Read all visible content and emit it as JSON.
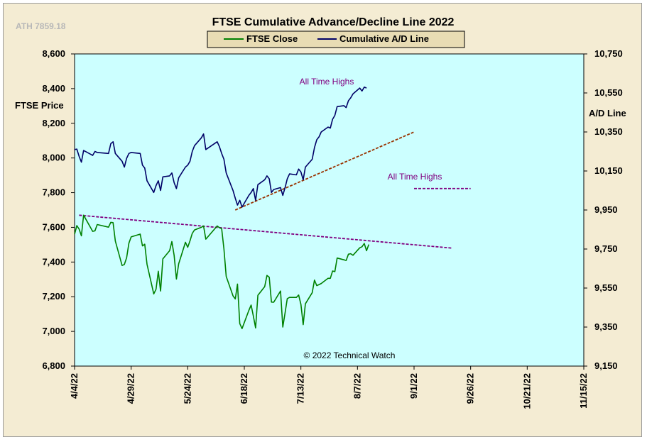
{
  "title": "FTSE Cumulative  Advance/Decline  Line 2022",
  "ath_label": "ATH 7859.18",
  "copyright": "© 2022 Technical Watch",
  "colors": {
    "background": "#f4ecd3",
    "plot_area": "#ccffff",
    "ftse": "#008000",
    "ad": "#000066",
    "trend_ad": "#993300",
    "trend_ftse": "#800080",
    "annotation": "#800080"
  },
  "chart_data": {
    "type": "line",
    "title": "FTSE Cumulative  Advance/Decline  Line 2022",
    "grid": false,
    "legend_position": "top-center",
    "x_ticks": [
      "4/4/22",
      "4/29/22",
      "5/24/22",
      "6/18/22",
      "7/13/22",
      "8/7/22",
      "9/1/22",
      "9/26/22",
      "10/21/22",
      "11/15/22"
    ],
    "left_axis": {
      "label": "FTSE Price",
      "range": [
        6800,
        8600
      ],
      "ticks": [
        "6,800",
        "7,000",
        "7,200",
        "7,400",
        "7,600",
        "7,800",
        "8,000",
        "8,200",
        "8,400",
        "8,600"
      ]
    },
    "right_axis": {
      "label": "A/D Line",
      "range": [
        9150,
        10750
      ],
      "ticks": [
        "9,150",
        "9,350",
        "9,550",
        "9,750",
        "9,950",
        "10,150",
        "10,350",
        "10,550",
        "10,750"
      ]
    },
    "series": [
      {
        "name": "FTSE Close",
        "axis": "left",
        "color": "#008000",
        "points": [
          [
            "4/4/22",
            7560
          ],
          [
            "4/5/22",
            7610
          ],
          [
            "4/6/22",
            7590
          ],
          [
            "4/7/22",
            7551
          ],
          [
            "4/8/22",
            7670
          ],
          [
            "4/12/22",
            7577
          ],
          [
            "4/13/22",
            7580
          ],
          [
            "4/14/22",
            7616
          ],
          [
            "4/19/22",
            7601
          ],
          [
            "4/20/22",
            7629
          ],
          [
            "4/21/22",
            7627
          ],
          [
            "4/22/22",
            7521
          ],
          [
            "4/25/22",
            7380
          ],
          [
            "4/26/22",
            7386
          ],
          [
            "4/27/22",
            7425
          ],
          [
            "4/28/22",
            7509
          ],
          [
            "4/29/22",
            7545
          ],
          [
            "5/3/22",
            7561
          ],
          [
            "5/4/22",
            7493
          ],
          [
            "5/5/22",
            7503
          ],
          [
            "5/6/22",
            7387
          ],
          [
            "5/9/22",
            7216
          ],
          [
            "5/10/22",
            7243
          ],
          [
            "5/11/22",
            7347
          ],
          [
            "5/12/22",
            7233
          ],
          [
            "5/13/22",
            7418
          ],
          [
            "5/16/22",
            7465
          ],
          [
            "5/17/22",
            7518
          ],
          [
            "5/18/22",
            7438
          ],
          [
            "5/19/22",
            7302
          ],
          [
            "5/20/22",
            7390
          ],
          [
            "5/23/22",
            7514
          ],
          [
            "5/24/22",
            7485
          ],
          [
            "5/25/22",
            7522
          ],
          [
            "5/26/22",
            7565
          ],
          [
            "5/27/22",
            7585
          ],
          [
            "5/30/22",
            7600
          ],
          [
            "5/31/22",
            7608
          ],
          [
            "6/1/22",
            7532
          ],
          [
            "6/6/22",
            7608
          ],
          [
            "6/7/22",
            7598
          ],
          [
            "6/8/22",
            7593
          ],
          [
            "6/9/22",
            7476
          ],
          [
            "6/10/22",
            7317
          ],
          [
            "6/13/22",
            7205
          ],
          [
            "6/14/22",
            7187
          ],
          [
            "6/15/22",
            7273
          ],
          [
            "6/16/22",
            7045
          ],
          [
            "6/17/22",
            7016
          ],
          [
            "6/20/22",
            7121
          ],
          [
            "6/21/22",
            7152
          ],
          [
            "6/22/22",
            7089
          ],
          [
            "6/23/22",
            7020
          ],
          [
            "6/24/22",
            7208
          ],
          [
            "6/27/22",
            7258
          ],
          [
            "6/28/22",
            7323
          ],
          [
            "6/29/22",
            7312
          ],
          [
            "6/30/22",
            7169
          ],
          [
            "7/1/22",
            7168
          ],
          [
            "7/4/22",
            7233
          ],
          [
            "7/5/22",
            7025
          ],
          [
            "7/6/22",
            7107
          ],
          [
            "7/7/22",
            7189
          ],
          [
            "7/8/22",
            7196
          ],
          [
            "7/11/22",
            7196
          ],
          [
            "7/12/22",
            7210
          ],
          [
            "7/13/22",
            7156
          ],
          [
            "7/14/22",
            7039
          ],
          [
            "7/15/22",
            7159
          ],
          [
            "7/18/22",
            7223
          ],
          [
            "7/19/22",
            7296
          ],
          [
            "7/20/22",
            7264
          ],
          [
            "7/21/22",
            7270
          ],
          [
            "7/22/22",
            7276
          ],
          [
            "7/25/22",
            7306
          ],
          [
            "7/26/22",
            7306
          ],
          [
            "7/27/22",
            7348
          ],
          [
            "7/28/22",
            7345
          ],
          [
            "7/29/22",
            7423
          ],
          [
            "8/1/22",
            7413
          ],
          [
            "8/2/22",
            7409
          ],
          [
            "8/3/22",
            7445
          ],
          [
            "8/4/22",
            7448
          ],
          [
            "8/5/22",
            7439
          ],
          [
            "8/8/22",
            7482
          ],
          [
            "8/9/22",
            7488
          ],
          [
            "8/10/22",
            7507
          ],
          [
            "8/11/22",
            7465
          ],
          [
            "8/12/22",
            7501
          ]
        ]
      },
      {
        "name": "Cumulative A/D Line",
        "axis": "right",
        "color": "#000066",
        "points": [
          [
            "4/4/22",
            10260
          ],
          [
            "4/5/22",
            10262
          ],
          [
            "4/6/22",
            10225
          ],
          [
            "4/7/22",
            10195
          ],
          [
            "4/8/22",
            10255
          ],
          [
            "4/12/22",
            10230
          ],
          [
            "4/13/22",
            10250
          ],
          [
            "4/14/22",
            10245
          ],
          [
            "4/19/22",
            10240
          ],
          [
            "4/20/22",
            10290
          ],
          [
            "4/21/22",
            10300
          ],
          [
            "4/22/22",
            10240
          ],
          [
            "4/25/22",
            10200
          ],
          [
            "4/26/22",
            10170
          ],
          [
            "4/27/22",
            10215
          ],
          [
            "4/28/22",
            10240
          ],
          [
            "4/29/22",
            10245
          ],
          [
            "5/3/22",
            10240
          ],
          [
            "5/4/22",
            10180
          ],
          [
            "5/5/22",
            10165
          ],
          [
            "5/6/22",
            10100
          ],
          [
            "5/9/22",
            10040
          ],
          [
            "5/10/22",
            10075
          ],
          [
            "5/11/22",
            10100
          ],
          [
            "5/12/22",
            10050
          ],
          [
            "5/13/22",
            10120
          ],
          [
            "5/16/22",
            10125
          ],
          [
            "5/17/22",
            10140
          ],
          [
            "5/18/22",
            10090
          ],
          [
            "5/19/22",
            10060
          ],
          [
            "5/20/22",
            10115
          ],
          [
            "5/23/22",
            10170
          ],
          [
            "5/24/22",
            10180
          ],
          [
            "5/25/22",
            10200
          ],
          [
            "5/26/22",
            10250
          ],
          [
            "5/27/22",
            10280
          ],
          [
            "5/30/22",
            10320
          ],
          [
            "5/31/22",
            10340
          ],
          [
            "6/1/22",
            10260
          ],
          [
            "6/6/22",
            10300
          ],
          [
            "6/7/22",
            10275
          ],
          [
            "6/8/22",
            10240
          ],
          [
            "6/9/22",
            10210
          ],
          [
            "6/10/22",
            10140
          ],
          [
            "6/13/22",
            10050
          ],
          [
            "6/14/22",
            10010
          ],
          [
            "6/15/22",
            9975
          ],
          [
            "6/16/22",
            10000
          ],
          [
            "6/17/22",
            9965
          ],
          [
            "6/20/22",
            10025
          ],
          [
            "6/21/22",
            10040
          ],
          [
            "6/22/22",
            10060
          ],
          [
            "6/23/22",
            10000
          ],
          [
            "6/24/22",
            10080
          ],
          [
            "6/27/22",
            10105
          ],
          [
            "6/28/22",
            10125
          ],
          [
            "6/29/22",
            10110
          ],
          [
            "6/30/22",
            10040
          ],
          [
            "7/1/22",
            10055
          ],
          [
            "7/4/22",
            10065
          ],
          [
            "7/5/22",
            10025
          ],
          [
            "7/6/22",
            10065
          ],
          [
            "7/7/22",
            10110
          ],
          [
            "7/8/22",
            10135
          ],
          [
            "7/11/22",
            10130
          ],
          [
            "7/12/22",
            10160
          ],
          [
            "7/13/22",
            10145
          ],
          [
            "7/14/22",
            10105
          ],
          [
            "7/15/22",
            10170
          ],
          [
            "7/18/22",
            10210
          ],
          [
            "7/19/22",
            10270
          ],
          [
            "7/20/22",
            10310
          ],
          [
            "7/21/22",
            10325
          ],
          [
            "7/22/22",
            10350
          ],
          [
            "7/25/22",
            10375
          ],
          [
            "7/26/22",
            10370
          ],
          [
            "7/27/22",
            10415
          ],
          [
            "7/28/22",
            10435
          ],
          [
            "7/29/22",
            10480
          ],
          [
            "8/1/22",
            10485
          ],
          [
            "8/2/22",
            10475
          ],
          [
            "8/3/22",
            10510
          ],
          [
            "8/4/22",
            10525
          ],
          [
            "8/5/22",
            10545
          ],
          [
            "8/8/22",
            10575
          ],
          [
            "8/9/22",
            10560
          ],
          [
            "8/10/22",
            10580
          ],
          [
            "8/11/22",
            10575
          ]
        ]
      }
    ],
    "trendlines": [
      {
        "axis": "right",
        "style": "dashed",
        "color": "#993300",
        "from": [
          "6/14/22",
          9950
        ],
        "to": [
          "9/1/22",
          10350
        ]
      },
      {
        "axis": "left",
        "style": "dashed",
        "color": "#800080",
        "from": [
          "4/6/22",
          7670
        ],
        "to": [
          "9/18/22",
          7480
        ]
      },
      {
        "axis": "right",
        "style": "dashed",
        "color": "#800080",
        "from": [
          "9/1/22",
          10060
        ],
        "to": [
          "9/26/22",
          10060
        ]
      }
    ],
    "annotations": [
      {
        "text": "All Time Highs",
        "near": "ad_peak"
      },
      {
        "text": "All Time Highs",
        "near": "ad_level_line"
      }
    ]
  }
}
